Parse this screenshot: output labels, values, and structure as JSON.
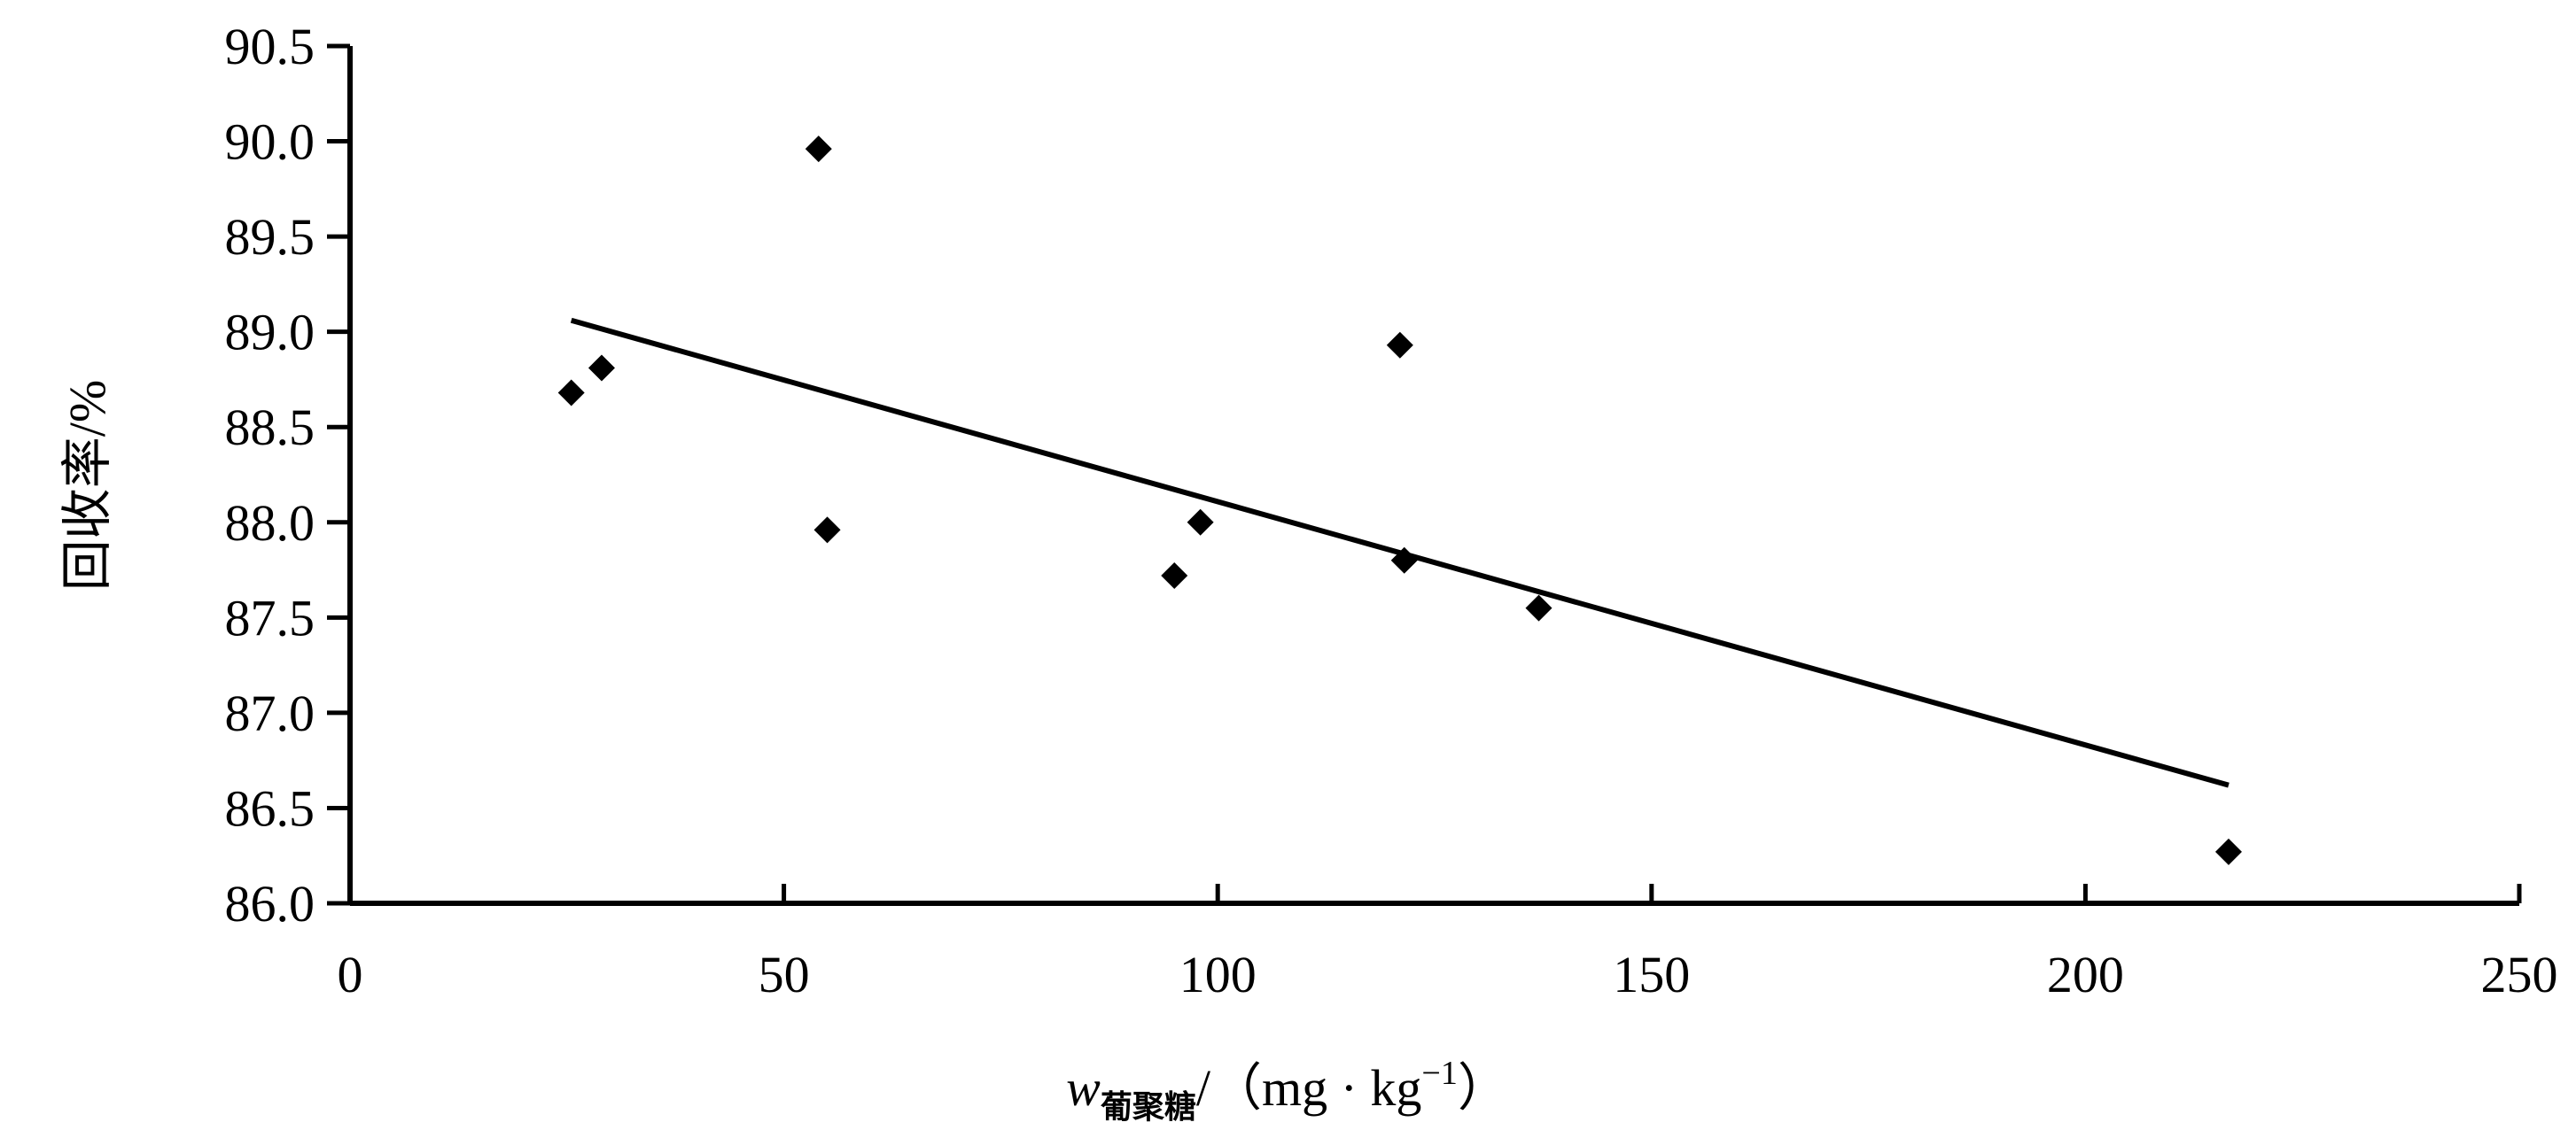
{
  "chart_data": {
    "type": "scatter",
    "title": "",
    "xlabel": {
      "symbol": "w",
      "subscript": "葡聚糖",
      "unit_prefix": "/（mg · kg",
      "unit_exp": "−1",
      "unit_suffix": "）"
    },
    "ylabel": "回收率/%",
    "xlim": [
      0,
      250
    ],
    "ylim": [
      86.0,
      90.5
    ],
    "xticks": [
      "0",
      "50",
      "100",
      "150",
      "200",
      "250"
    ],
    "yticks": [
      "86.0",
      "86.5",
      "87.0",
      "87.5",
      "88.0",
      "88.5",
      "89.0",
      "89.5",
      "90.0",
      "90.5"
    ],
    "grid": false,
    "legend": "none",
    "series": [
      {
        "points": [
          {
            "x": 25.5,
            "y": 88.68
          },
          {
            "x": 29,
            "y": 88.81
          },
          {
            "x": 54,
            "y": 89.96
          },
          {
            "x": 55,
            "y": 87.96
          },
          {
            "x": 95,
            "y": 87.72
          },
          {
            "x": 98,
            "y": 88.0
          },
          {
            "x": 121,
            "y": 88.93
          },
          {
            "x": 121.5,
            "y": 87.8
          },
          {
            "x": 137,
            "y": 87.55
          },
          {
            "x": 216.5,
            "y": 86.27
          }
        ]
      }
    ],
    "trendline": {
      "x": [
        25.5,
        216.5
      ],
      "y": [
        89.06,
        86.62
      ]
    }
  }
}
